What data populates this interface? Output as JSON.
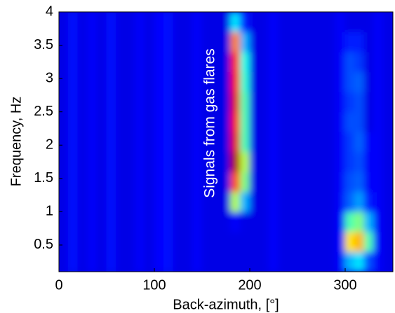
{
  "chart_data": {
    "type": "heatmap",
    "xlabel": "Back-azimuth, [°]",
    "ylabel": "Frequency, Hz",
    "annotation": "Signals from gas flares",
    "xlim": [
      0,
      350
    ],
    "ylim": [
      0.1,
      4
    ],
    "xticks": [
      0,
      100,
      200,
      300
    ],
    "yticks": [
      0.5,
      1,
      1.5,
      2,
      2.5,
      3,
      3.5,
      4
    ],
    "colormap": "jet",
    "x_edges": [
      0,
      10,
      20,
      30,
      40,
      50,
      60,
      70,
      80,
      90,
      100,
      110,
      120,
      130,
      140,
      150,
      160,
      170,
      180,
      190,
      200,
      210,
      220,
      230,
      240,
      250,
      260,
      270,
      280,
      290,
      300,
      310,
      320,
      330,
      340,
      350
    ],
    "y_edges": [
      0.1,
      0.4,
      0.7,
      1.0,
      1.3,
      1.6,
      1.9,
      2.2,
      2.5,
      2.8,
      3.1,
      3.4,
      3.7,
      4.0
    ],
    "values": [
      [
        0.1,
        0.14,
        0.1,
        0.12,
        0.1,
        0.14,
        0.1,
        0.1,
        0.12,
        0.1,
        0.13,
        0.14,
        0.1,
        0.1,
        0.12,
        0.1,
        0.1,
        0.1,
        0.1,
        0.1,
        0.1,
        0.1,
        0.12,
        0.1,
        0.1,
        0.1,
        0.1,
        0.1,
        0.1,
        0.12,
        0.3,
        0.35,
        0.2,
        0.12,
        0.1
      ],
      [
        0.1,
        0.14,
        0.1,
        0.12,
        0.1,
        0.14,
        0.1,
        0.1,
        0.12,
        0.1,
        0.13,
        0.14,
        0.1,
        0.1,
        0.12,
        0.1,
        0.1,
        0.1,
        0.1,
        0.1,
        0.1,
        0.1,
        0.12,
        0.1,
        0.1,
        0.1,
        0.1,
        0.1,
        0.1,
        0.12,
        0.65,
        0.7,
        0.45,
        0.12,
        0.1
      ],
      [
        0.1,
        0.14,
        0.1,
        0.12,
        0.1,
        0.14,
        0.1,
        0.1,
        0.12,
        0.1,
        0.13,
        0.14,
        0.1,
        0.1,
        0.12,
        0.1,
        0.1,
        0.1,
        0.12,
        0.1,
        0.1,
        0.1,
        0.12,
        0.1,
        0.1,
        0.1,
        0.1,
        0.1,
        0.1,
        0.12,
        0.45,
        0.5,
        0.3,
        0.12,
        0.1
      ],
      [
        0.1,
        0.14,
        0.1,
        0.12,
        0.1,
        0.14,
        0.1,
        0.1,
        0.12,
        0.1,
        0.13,
        0.14,
        0.1,
        0.1,
        0.12,
        0.1,
        0.1,
        0.1,
        0.55,
        0.3,
        0.1,
        0.1,
        0.12,
        0.1,
        0.1,
        0.1,
        0.1,
        0.1,
        0.1,
        0.12,
        0.22,
        0.28,
        0.15,
        0.12,
        0.1
      ],
      [
        0.1,
        0.14,
        0.1,
        0.12,
        0.1,
        0.14,
        0.1,
        0.1,
        0.12,
        0.1,
        0.13,
        0.14,
        0.1,
        0.1,
        0.12,
        0.1,
        0.1,
        0.1,
        0.8,
        0.5,
        0.1,
        0.1,
        0.12,
        0.1,
        0.1,
        0.1,
        0.1,
        0.1,
        0.1,
        0.12,
        0.2,
        0.22,
        0.12,
        0.12,
        0.1
      ],
      [
        0.1,
        0.14,
        0.1,
        0.12,
        0.1,
        0.14,
        0.1,
        0.1,
        0.12,
        0.1,
        0.13,
        0.14,
        0.1,
        0.1,
        0.12,
        0.1,
        0.1,
        0.1,
        0.95,
        0.55,
        0.1,
        0.1,
        0.12,
        0.1,
        0.1,
        0.1,
        0.1,
        0.1,
        0.1,
        0.12,
        0.18,
        0.2,
        0.12,
        0.12,
        0.1
      ],
      [
        0.1,
        0.14,
        0.1,
        0.12,
        0.1,
        0.14,
        0.1,
        0.1,
        0.12,
        0.1,
        0.13,
        0.14,
        0.1,
        0.1,
        0.12,
        0.1,
        0.1,
        0.1,
        0.9,
        0.45,
        0.1,
        0.1,
        0.12,
        0.1,
        0.1,
        0.1,
        0.1,
        0.1,
        0.1,
        0.12,
        0.18,
        0.22,
        0.12,
        0.12,
        0.1
      ],
      [
        0.1,
        0.14,
        0.1,
        0.12,
        0.1,
        0.14,
        0.1,
        0.1,
        0.12,
        0.1,
        0.13,
        0.14,
        0.1,
        0.1,
        0.12,
        0.1,
        0.1,
        0.1,
        0.88,
        0.45,
        0.1,
        0.1,
        0.12,
        0.1,
        0.1,
        0.1,
        0.1,
        0.1,
        0.1,
        0.12,
        0.2,
        0.2,
        0.1,
        0.12,
        0.1
      ],
      [
        0.1,
        0.14,
        0.1,
        0.12,
        0.1,
        0.14,
        0.1,
        0.1,
        0.12,
        0.1,
        0.13,
        0.14,
        0.1,
        0.1,
        0.12,
        0.1,
        0.1,
        0.1,
        0.9,
        0.45,
        0.1,
        0.1,
        0.12,
        0.1,
        0.1,
        0.1,
        0.1,
        0.1,
        0.1,
        0.12,
        0.18,
        0.2,
        0.1,
        0.12,
        0.1
      ],
      [
        0.1,
        0.14,
        0.1,
        0.12,
        0.1,
        0.14,
        0.1,
        0.1,
        0.12,
        0.1,
        0.13,
        0.14,
        0.1,
        0.1,
        0.12,
        0.1,
        0.1,
        0.1,
        0.88,
        0.42,
        0.1,
        0.1,
        0.12,
        0.1,
        0.1,
        0.1,
        0.1,
        0.1,
        0.1,
        0.12,
        0.2,
        0.22,
        0.1,
        0.12,
        0.1
      ],
      [
        0.1,
        0.14,
        0.1,
        0.12,
        0.1,
        0.14,
        0.1,
        0.1,
        0.12,
        0.1,
        0.13,
        0.14,
        0.1,
        0.1,
        0.12,
        0.1,
        0.1,
        0.1,
        0.85,
        0.4,
        0.1,
        0.1,
        0.12,
        0.1,
        0.1,
        0.1,
        0.1,
        0.1,
        0.1,
        0.12,
        0.2,
        0.18,
        0.1,
        0.12,
        0.1
      ],
      [
        0.1,
        0.14,
        0.1,
        0.12,
        0.1,
        0.14,
        0.1,
        0.1,
        0.12,
        0.1,
        0.13,
        0.14,
        0.1,
        0.1,
        0.12,
        0.1,
        0.1,
        0.1,
        0.75,
        0.3,
        0.1,
        0.1,
        0.12,
        0.1,
        0.1,
        0.1,
        0.1,
        0.1,
        0.1,
        0.12,
        0.15,
        0.15,
        0.1,
        0.12,
        0.1
      ],
      [
        0.1,
        0.14,
        0.1,
        0.12,
        0.1,
        0.14,
        0.1,
        0.1,
        0.12,
        0.1,
        0.13,
        0.14,
        0.1,
        0.1,
        0.12,
        0.1,
        0.1,
        0.1,
        0.35,
        0.15,
        0.1,
        0.1,
        0.12,
        0.1,
        0.1,
        0.1,
        0.1,
        0.1,
        0.1,
        0.12,
        0.1,
        0.1,
        0.1,
        0.12,
        0.1
      ]
    ]
  }
}
